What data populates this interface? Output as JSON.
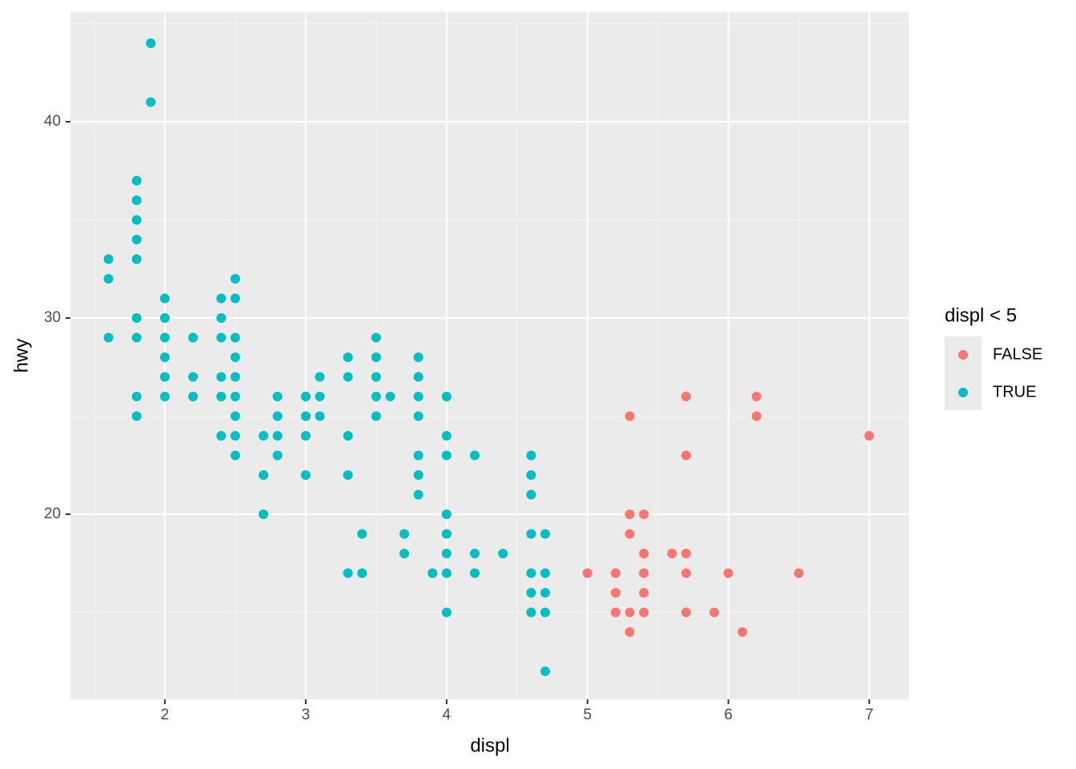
{
  "chart_data": {
    "type": "scatter",
    "x_label": "displ",
    "y_label": "hwy",
    "legend_title": "displ < 5",
    "xlim": [
      1.33,
      7.28
    ],
    "ylim": [
      10.57,
      45.59
    ],
    "xticks": [
      2,
      3,
      4,
      5,
      6,
      7
    ],
    "yticks": [
      20,
      30,
      40
    ],
    "grid": true,
    "legend": "right",
    "series": [
      {
        "name": "FALSE",
        "color": "#F8766D",
        "x": [
          5.0,
          5.2,
          5.2,
          5.2,
          5.3,
          5.3,
          5.3,
          5.3,
          5.3,
          5.4,
          5.4,
          5.4,
          5.4,
          5.4,
          5.6,
          5.7,
          5.7,
          5.7,
          5.7,
          5.7,
          5.9,
          6.0,
          6.1,
          6.2,
          6.2,
          6.5,
          7.0
        ],
        "values": [
          17,
          17,
          16,
          15,
          25,
          20,
          19,
          15,
          14,
          20,
          18,
          17,
          16,
          15,
          18,
          26,
          23,
          18,
          17,
          15,
          15,
          17,
          14,
          26,
          25,
          17,
          24
        ]
      },
      {
        "name": "TRUE",
        "color": "#00BFC4",
        "x": [
          1.6,
          1.6,
          1.6,
          1.8,
          1.8,
          1.8,
          1.8,
          1.8,
          1.8,
          1.8,
          1.8,
          1.8,
          1.9,
          1.9,
          2.0,
          2.0,
          2.0,
          2.0,
          2.0,
          2.0,
          2.2,
          2.2,
          2.2,
          2.4,
          2.4,
          2.4,
          2.4,
          2.4,
          2.4,
          2.5,
          2.5,
          2.5,
          2.5,
          2.5,
          2.5,
          2.5,
          2.5,
          2.5,
          2.7,
          2.7,
          2.7,
          2.8,
          2.8,
          2.8,
          2.8,
          3.0,
          3.0,
          3.0,
          3.0,
          3.1,
          3.1,
          3.1,
          3.3,
          3.3,
          3.3,
          3.3,
          3.3,
          3.4,
          3.4,
          3.5,
          3.5,
          3.5,
          3.5,
          3.5,
          3.6,
          3.7,
          3.7,
          3.8,
          3.8,
          3.8,
          3.8,
          3.8,
          3.8,
          3.8,
          3.9,
          4.0,
          4.0,
          4.0,
          4.0,
          4.0,
          4.0,
          4.0,
          4.0,
          4.2,
          4.2,
          4.2,
          4.4,
          4.6,
          4.6,
          4.6,
          4.6,
          4.6,
          4.6,
          4.6,
          4.7,
          4.7,
          4.7,
          4.7,
          4.7
        ],
        "values": [
          33,
          32,
          29,
          37,
          36,
          35,
          34,
          33,
          30,
          29,
          26,
          25,
          44,
          41,
          31,
          30,
          29,
          28,
          27,
          26,
          29,
          27,
          26,
          31,
          30,
          29,
          27,
          26,
          24,
          32,
          31,
          29,
          28,
          27,
          26,
          25,
          24,
          23,
          24,
          22,
          20,
          26,
          25,
          24,
          23,
          26,
          25,
          24,
          22,
          27,
          26,
          25,
          28,
          27,
          24,
          22,
          17,
          19,
          17,
          29,
          28,
          27,
          26,
          25,
          26,
          19,
          18,
          28,
          27,
          26,
          25,
          23,
          22,
          21,
          17,
          26,
          24,
          23,
          20,
          19,
          18,
          17,
          15,
          23,
          18,
          17,
          18,
          23,
          22,
          21,
          19,
          17,
          16,
          15,
          19,
          17,
          16,
          15,
          12
        ]
      }
    ]
  }
}
